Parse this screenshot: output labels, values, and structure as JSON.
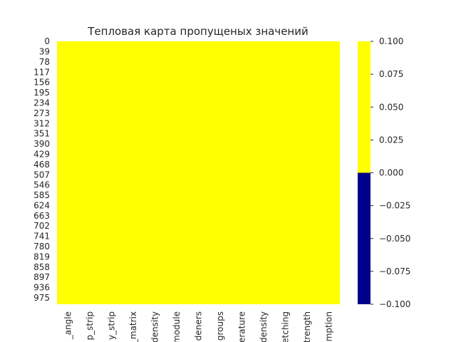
{
  "chart_data": {
    "type": "heatmap",
    "title": "Тепловая карта пропущеных значений",
    "xlabel": "",
    "ylabel": "",
    "y_tick_labels": [
      "0",
      "39",
      "78",
      "117",
      "156",
      "195",
      "234",
      "273",
      "312",
      "351",
      "390",
      "429",
      "468",
      "507",
      "546",
      "585",
      "624",
      "663",
      "702",
      "741",
      "780",
      "819",
      "858",
      "897",
      "936",
      "975"
    ],
    "x_tick_labels": [
      "_angle",
      "p_strip",
      "y_strip",
      "_matrix",
      "density",
      "module",
      "deners",
      "groups",
      "erature",
      "density",
      "etching",
      "trength",
      "mption"
    ],
    "rows": 1000,
    "value_all_cells": 0,
    "colormap": [
      "#00008b",
      "#ffff00"
    ],
    "colorbar": {
      "vmin": -0.1,
      "vmax": 0.1,
      "tick_values": [
        0.1,
        0.075,
        0.05,
        0.025,
        0.0,
        -0.025,
        -0.05,
        -0.075,
        -0.1
      ],
      "tick_labels": [
        "0.100",
        "0.075",
        "0.050",
        "0.025",
        "0.000",
        "−0.025",
        "−0.050",
        "−0.075",
        "−0.100"
      ]
    },
    "colors": {
      "missing": "#00008b",
      "present": "#ffff00"
    }
  }
}
